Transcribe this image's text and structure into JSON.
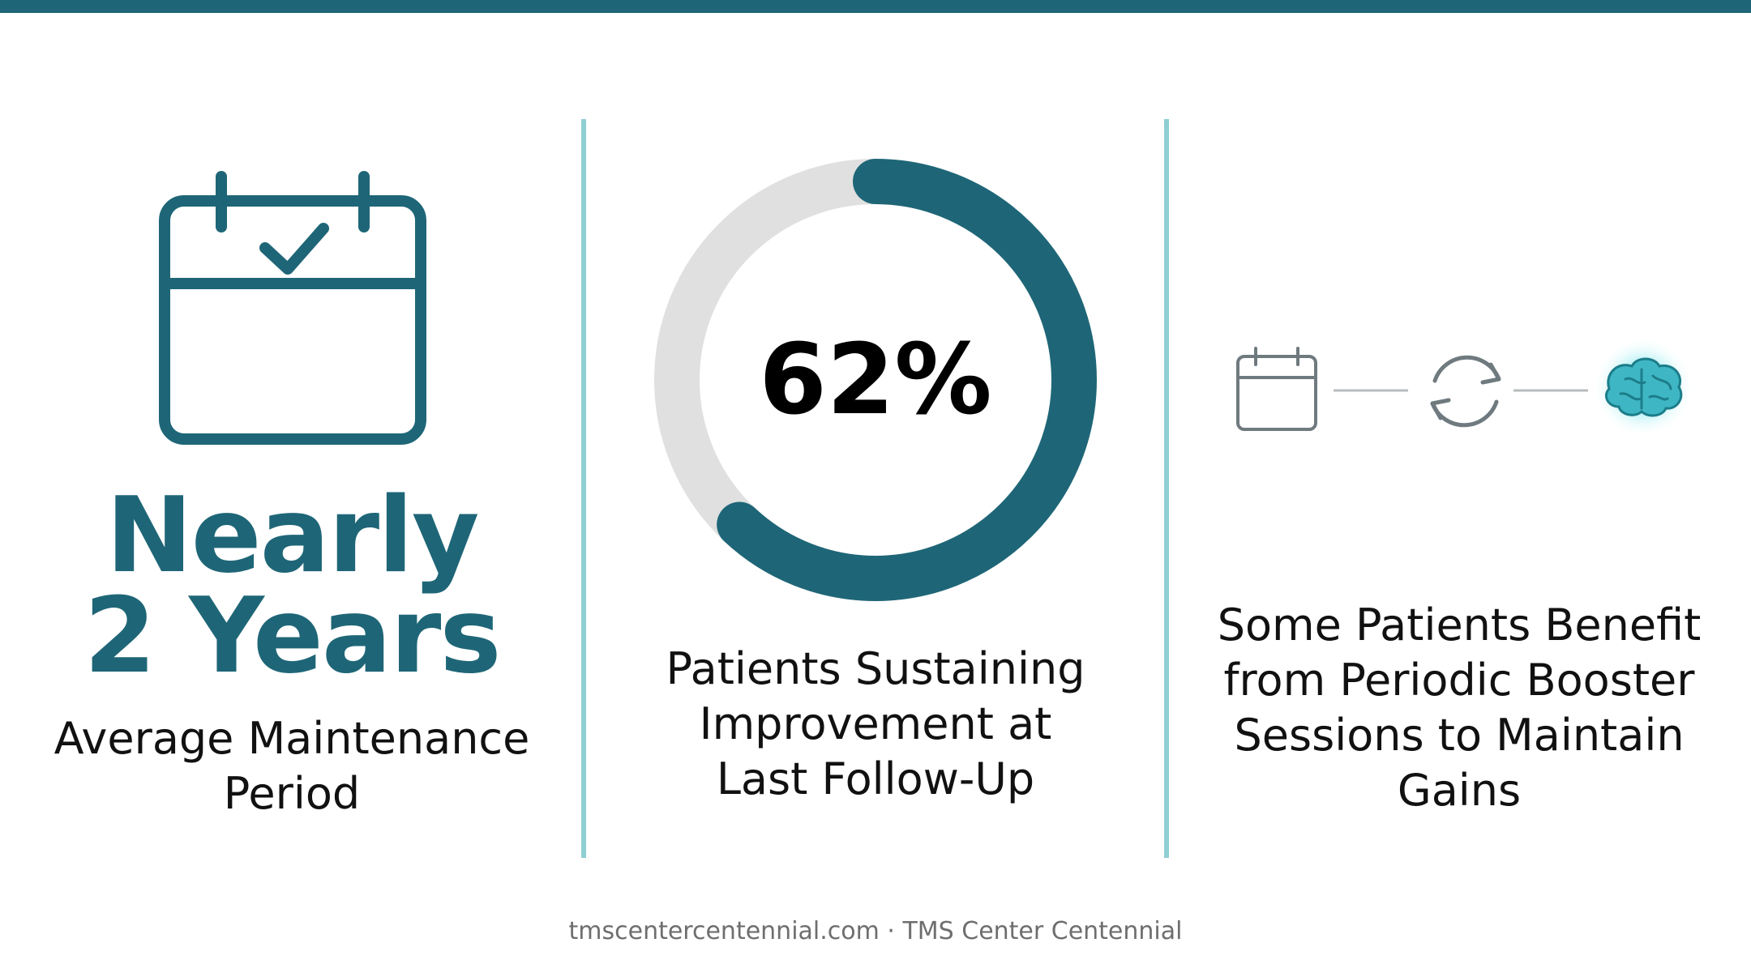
{
  "colors": {
    "accent": "#1e6677",
    "divider": "#8fcfd3",
    "donut_track": "#e0e0e0",
    "icon_gray": "#6f7a7f",
    "brain_glow": "#3fd6e0"
  },
  "left_panel": {
    "icon": "calendar-check-icon",
    "headline_line1": "Nearly",
    "headline_line2": "2 Years",
    "caption_line1": "Average Maintenance",
    "caption_line2": "Period"
  },
  "middle_panel": {
    "value": "62%",
    "percent": 62,
    "caption_line1": "Patients Sustaining",
    "caption_line2": "Improvement at",
    "caption_line3": "Last Follow-Up"
  },
  "right_panel": {
    "icons": [
      "calendar-icon",
      "refresh-icon",
      "brain-icon"
    ],
    "caption_line1": "Some Patients Benefit",
    "caption_line2": "from Periodic Booster",
    "caption_line3": "Sessions to Maintain",
    "caption_line4": "Gains"
  },
  "footer": {
    "text": "tmscentercentennial.com · TMS Center Centennial"
  }
}
